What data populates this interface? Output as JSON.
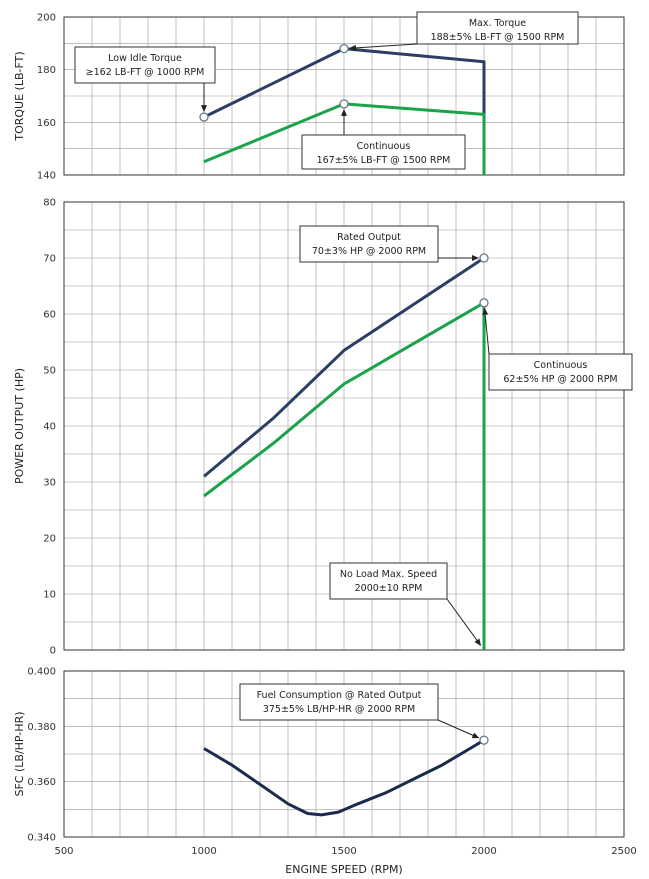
{
  "colors": {
    "max_series": "#2c3e63",
    "continuous_series": "#1aa34a",
    "sfc_series": "#1c2a4d",
    "grid": "#9a9a9a",
    "frame": "#333333"
  },
  "chart_data": [
    {
      "id": "torque",
      "type": "line",
      "ylabel": "TORQUE (LB-FT)",
      "xlim": [
        500,
        2500
      ],
      "ylim": [
        140,
        200
      ],
      "yticks": [
        140,
        160,
        180,
        200
      ],
      "ytick_labels": [
        "140",
        "160",
        "180",
        "200"
      ],
      "series": [
        {
          "key": "max",
          "x": [
            1000,
            1500,
            2000,
            2000
          ],
          "y": [
            162,
            188,
            183,
            140
          ]
        },
        {
          "key": "continuous",
          "x": [
            1000,
            1500,
            2000,
            2000
          ],
          "y": [
            145,
            167,
            163,
            140
          ]
        }
      ],
      "markers": [
        {
          "x": 1000,
          "y": 162
        },
        {
          "x": 1500,
          "y": 188
        },
        {
          "x": 1500,
          "y": 167
        }
      ],
      "annotations": [
        {
          "lines": [
            "Low Idle Torque",
            "≥162 LB-FT @ 1000 RPM"
          ],
          "point": {
            "x": 1000,
            "y": 162
          }
        },
        {
          "lines": [
            "Max. Torque",
            "188±5% LB-FT @ 1500 RPM"
          ],
          "point": {
            "x": 1500,
            "y": 188
          }
        },
        {
          "lines": [
            "Continuous",
            "167±5% LB-FT @ 1500 RPM"
          ],
          "point": {
            "x": 1500,
            "y": 167
          }
        }
      ]
    },
    {
      "id": "power",
      "type": "line",
      "ylabel": "POWER OUTPUT (HP)",
      "xlim": [
        500,
        2500
      ],
      "ylim": [
        0,
        80
      ],
      "yticks": [
        0,
        10,
        20,
        30,
        40,
        50,
        60,
        70,
        80
      ],
      "ytick_labels": [
        "0",
        "10",
        "20",
        "30",
        "40",
        "50",
        "60",
        "70",
        "80"
      ],
      "series": [
        {
          "key": "max",
          "x": [
            1000,
            1250,
            1500,
            2000
          ],
          "y": [
            31,
            41.5,
            53.5,
            70
          ]
        },
        {
          "key": "continuous",
          "x": [
            1000,
            1250,
            1500,
            2000,
            2000
          ],
          "y": [
            27.5,
            37,
            47.5,
            62,
            0
          ]
        }
      ],
      "markers": [
        {
          "x": 2000,
          "y": 70
        },
        {
          "x": 2000,
          "y": 62
        }
      ],
      "annotations": [
        {
          "lines": [
            "Rated Output",
            "70±3% HP @ 2000 RPM"
          ],
          "point": {
            "x": 2000,
            "y": 70
          }
        },
        {
          "lines": [
            "Continuous",
            "62±5% HP @ 2000 RPM"
          ],
          "point": {
            "x": 2000,
            "y": 62
          }
        },
        {
          "lines": [
            "No Load Max. Speed",
            "2000±10 RPM"
          ],
          "point": {
            "x": 2000,
            "y": 0
          }
        }
      ]
    },
    {
      "id": "sfc",
      "type": "line",
      "ylabel": "SFC (LB/HP-HR)",
      "xlabel": "ENGINE SPEED (RPM)",
      "xlim": [
        500,
        2500
      ],
      "ylim": [
        0.34,
        0.4
      ],
      "yticks": [
        0.34,
        0.36,
        0.38,
        0.4
      ],
      "ytick_labels": [
        "0.340",
        "0.360",
        "0.380",
        "0.400"
      ],
      "xticks": [
        500,
        1000,
        1500,
        2000,
        2500
      ],
      "xtick_labels": [
        "500",
        "1000",
        "1500",
        "2000",
        "2500"
      ],
      "series": [
        {
          "key": "sfc",
          "x": [
            1000,
            1100,
            1200,
            1300,
            1370,
            1420,
            1480,
            1550,
            1650,
            1750,
            1850,
            1950,
            2000
          ],
          "y": [
            0.372,
            0.366,
            0.359,
            0.352,
            0.3485,
            0.348,
            0.349,
            0.352,
            0.356,
            0.361,
            0.366,
            0.372,
            0.375
          ]
        }
      ],
      "markers": [
        {
          "x": 2000,
          "y": 0.375
        }
      ],
      "annotations": [
        {
          "lines": [
            "Fuel Consumption @ Rated Output",
            "375±5% LB/HP-HR @ 2000 RPM"
          ],
          "point": {
            "x": 2000,
            "y": 0.375
          }
        }
      ]
    }
  ]
}
